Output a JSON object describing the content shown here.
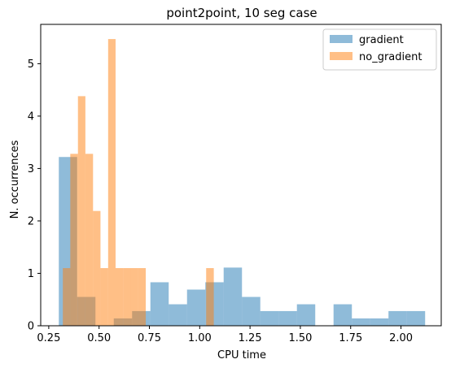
{
  "chart_data": {
    "type": "histogram",
    "title": "point2point, 10 seg case",
    "xlabel": "CPU time",
    "ylabel": "N. occurrences",
    "xlim": [
      0.21,
      2.2
    ],
    "ylim": [
      0,
      5.75
    ],
    "xticks": [
      0.25,
      0.5,
      0.75,
      1.0,
      1.25,
      1.5,
      1.75,
      2.0
    ],
    "xtick_labels": [
      "0.25",
      "0.50",
      "0.75",
      "1.00",
      "1.25",
      "1.50",
      "1.75",
      "2.00"
    ],
    "yticks": [
      0,
      1,
      2,
      3,
      4,
      5
    ],
    "ytick_labels": [
      "0",
      "1",
      "2",
      "3",
      "4",
      "5"
    ],
    "legend_position": "top-right",
    "series": [
      {
        "name": "gradient",
        "color": "#1f77b4",
        "alpha": 0.5,
        "bins": [
          {
            "x0": 0.3,
            "x1": 0.391,
            "value": 3.22
          },
          {
            "x0": 0.391,
            "x1": 0.482,
            "value": 0.55
          },
          {
            "x0": 0.482,
            "x1": 0.573,
            "value": 0.0
          },
          {
            "x0": 0.573,
            "x1": 0.664,
            "value": 0.14
          },
          {
            "x0": 0.664,
            "x1": 0.755,
            "value": 0.28
          },
          {
            "x0": 0.755,
            "x1": 0.846,
            "value": 0.83
          },
          {
            "x0": 0.846,
            "x1": 0.937,
            "value": 0.41
          },
          {
            "x0": 0.937,
            "x1": 1.028,
            "value": 0.69
          },
          {
            "x0": 1.028,
            "x1": 1.119,
            "value": 0.83
          },
          {
            "x0": 1.119,
            "x1": 1.21,
            "value": 1.11
          },
          {
            "x0": 1.21,
            "x1": 1.301,
            "value": 0.55
          },
          {
            "x0": 1.301,
            "x1": 1.392,
            "value": 0.28
          },
          {
            "x0": 1.392,
            "x1": 1.483,
            "value": 0.28
          },
          {
            "x0": 1.483,
            "x1": 1.574,
            "value": 0.41
          },
          {
            "x0": 1.574,
            "x1": 1.665,
            "value": 0.0
          },
          {
            "x0": 1.665,
            "x1": 1.756,
            "value": 0.41
          },
          {
            "x0": 1.756,
            "x1": 1.847,
            "value": 0.14
          },
          {
            "x0": 1.847,
            "x1": 1.938,
            "value": 0.14
          },
          {
            "x0": 1.938,
            "x1": 2.029,
            "value": 0.28
          },
          {
            "x0": 2.029,
            "x1": 2.12,
            "value": 0.28
          }
        ]
      },
      {
        "name": "no_gradient",
        "color": "#ff7f0e",
        "alpha": 0.5,
        "bins": [
          {
            "x0": 0.32,
            "x1": 0.357,
            "value": 1.1
          },
          {
            "x0": 0.357,
            "x1": 0.395,
            "value": 3.28
          },
          {
            "x0": 0.395,
            "x1": 0.432,
            "value": 4.38
          },
          {
            "x0": 0.432,
            "x1": 0.47,
            "value": 3.28
          },
          {
            "x0": 0.47,
            "x1": 0.507,
            "value": 2.19
          },
          {
            "x0": 0.507,
            "x1": 0.545,
            "value": 1.1
          },
          {
            "x0": 0.545,
            "x1": 0.582,
            "value": 5.47
          },
          {
            "x0": 0.582,
            "x1": 0.62,
            "value": 1.1
          },
          {
            "x0": 0.62,
            "x1": 0.657,
            "value": 1.1
          },
          {
            "x0": 0.657,
            "x1": 0.695,
            "value": 1.1
          },
          {
            "x0": 0.695,
            "x1": 0.732,
            "value": 1.1
          },
          {
            "x0": 0.732,
            "x1": 0.77,
            "value": 0.0
          },
          {
            "x0": 0.77,
            "x1": 0.807,
            "value": 0.0
          },
          {
            "x0": 0.807,
            "x1": 0.845,
            "value": 0.0
          },
          {
            "x0": 0.845,
            "x1": 0.882,
            "value": 0.0
          },
          {
            "x0": 0.882,
            "x1": 0.92,
            "value": 0.0
          },
          {
            "x0": 0.92,
            "x1": 0.957,
            "value": 0.0
          },
          {
            "x0": 0.957,
            "x1": 0.995,
            "value": 0.0
          },
          {
            "x0": 0.995,
            "x1": 1.032,
            "value": 0.0
          },
          {
            "x0": 1.032,
            "x1": 1.07,
            "value": 1.1
          }
        ]
      }
    ]
  }
}
